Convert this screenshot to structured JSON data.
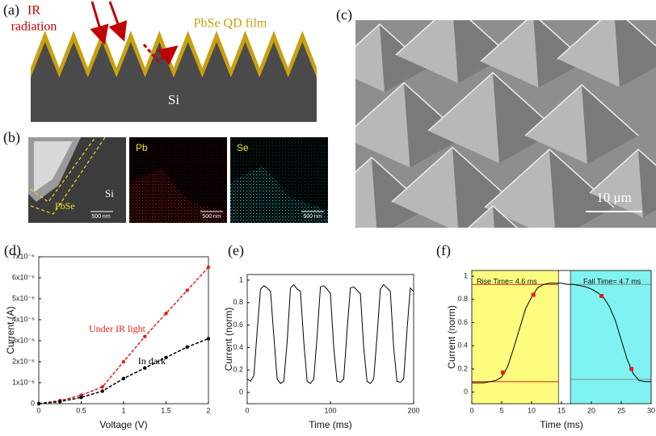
{
  "figure": {
    "a": {
      "label": "(a)",
      "ir": "IR",
      "radiation": "radiation",
      "film": "PbSe QD film",
      "substrate": "Si"
    },
    "b": {
      "label": "(b)",
      "pbse": "PbSe",
      "si": "Si",
      "pb": "Pb",
      "se": "Se",
      "scale": [
        "500 nm",
        "500 nm",
        "500 nm"
      ]
    },
    "c": {
      "label": "(c)",
      "scale": "10 μm"
    },
    "d": {
      "label": "(d)"
    },
    "e": {
      "label": "(e)"
    },
    "f": {
      "label": "(f)"
    }
  },
  "chart_data": [
    {
      "type": "line",
      "x_label": "Voltage (V)",
      "y_label": "Current (A)",
      "x": [
        0,
        0.25,
        0.5,
        0.75,
        1,
        1.25,
        1.5,
        1.75,
        2
      ],
      "series": [
        {
          "name": "Under IR light",
          "color": "#e0201b",
          "values": [
            0,
            1.5e-07,
            4e-07,
            8e-07,
            2e-06,
            3.2e-06,
            4.3e-06,
            5.4e-06,
            6.5e-06
          ]
        },
        {
          "name": "In dark",
          "color": "#000000",
          "values": [
            0,
            1e-07,
            3e-07,
            6e-07,
            1.2e-06,
            1.7e-06,
            2.2e-06,
            2.7e-06,
            3.1e-06
          ]
        }
      ],
      "xlim": [
        0,
        2
      ],
      "xticks": [
        0,
        0.5,
        1,
        1.5,
        2
      ],
      "ylim": [
        0,
        7e-06
      ],
      "yticks": [
        0,
        {
          "value": 1e-06,
          "label": "1x10⁻⁶"
        },
        {
          "value": 2e-06,
          "label": "2x10⁻⁶"
        },
        {
          "value": 3e-06,
          "label": "3x10⁻⁶"
        },
        {
          "value": 4e-06,
          "label": "4x10⁻⁶"
        },
        {
          "value": 5e-06,
          "label": "5x10⁻⁶"
        },
        {
          "value": 6e-06,
          "label": "6x10⁻⁶"
        },
        {
          "value": 7e-06,
          "label": "7x10⁻⁶"
        }
      ],
      "dashed": true,
      "markers": true
    },
    {
      "type": "line",
      "x_label": "Time (ms)",
      "y_label": "Current (norm)",
      "x": [
        0,
        4,
        8,
        12,
        16,
        20,
        24,
        28,
        32,
        36,
        40,
        44,
        48,
        52,
        56,
        60,
        64,
        68,
        72,
        76,
        80,
        84,
        88,
        92,
        96,
        100,
        104,
        108,
        112,
        116,
        120,
        124,
        128,
        132,
        136,
        140,
        144,
        148,
        152,
        156,
        160,
        164,
        168,
        172,
        176,
        180,
        184,
        188,
        192,
        196,
        200
      ],
      "values": [
        0.12,
        0.1,
        0.15,
        0.55,
        0.92,
        0.95,
        0.93,
        0.9,
        0.5,
        0.12,
        0.08,
        0.1,
        0.45,
        0.93,
        0.96,
        0.92,
        0.9,
        0.45,
        0.1,
        0.08,
        0.12,
        0.5,
        0.94,
        0.95,
        0.92,
        0.88,
        0.4,
        0.1,
        0.09,
        0.12,
        0.55,
        0.93,
        0.94,
        0.91,
        0.88,
        0.4,
        0.1,
        0.08,
        0.12,
        0.5,
        0.92,
        0.96,
        0.93,
        0.9,
        0.4,
        0.1,
        0.09,
        0.12,
        0.55,
        0.93,
        0.9
      ],
      "color": "#000000",
      "xlim": [
        0,
        200
      ],
      "xticks": [
        0,
        100,
        200
      ],
      "ylim": [
        -0.1,
        1.05
      ],
      "yticks": [
        0,
        0.2,
        0.4,
        0.6,
        0.8,
        1
      ]
    },
    {
      "type": "line",
      "x_label": "Time (ms)",
      "y_label": "Current (norm)",
      "x": [
        0,
        1,
        2,
        3,
        4,
        5,
        6,
        7,
        8,
        9,
        10,
        11,
        12,
        13,
        14,
        15,
        16,
        17,
        18,
        19,
        20,
        21,
        22,
        23,
        24,
        25,
        26,
        27,
        28,
        29,
        30
      ],
      "values": [
        0.08,
        0.08,
        0.08,
        0.09,
        0.1,
        0.13,
        0.22,
        0.38,
        0.55,
        0.72,
        0.82,
        0.9,
        0.93,
        0.94,
        0.94,
        0.94,
        0.93,
        0.93,
        0.92,
        0.91,
        0.89,
        0.86,
        0.82,
        0.74,
        0.62,
        0.45,
        0.28,
        0.16,
        0.1,
        0.09,
        0.09
      ],
      "color": "#000000",
      "points": {
        "x": [
          5.2,
          10.3,
          21.7,
          26.7
        ],
        "y": [
          0.17,
          0.84,
          0.83,
          0.2
        ],
        "color": "#e0201b"
      },
      "shaded_regions": [
        {
          "x": [
            0,
            14.5
          ],
          "color": "#fdfd7e"
        },
        {
          "x": [
            16.5,
            30
          ],
          "color": "#7ff2f2"
        }
      ],
      "vlines": [
        14.5,
        16.5
      ],
      "hlines": [
        {
          "y": 0.09,
          "x": [
            0,
            14.5
          ],
          "color": "#e0201b"
        },
        {
          "y": 0.93,
          "x": [
            0,
            14.5
          ],
          "color": "#e0201b"
        },
        {
          "y": 0.11,
          "x": [
            16.5,
            30
          ],
          "color": "#888888"
        },
        {
          "y": 0.93,
          "x": [
            16.5,
            30
          ],
          "color": "#888888"
        }
      ],
      "annotations": [
        "Rise Time= 4.6 ms",
        "Fall Time= 4.7 ms"
      ],
      "xlim": [
        0,
        30
      ],
      "xticks": [
        0,
        5,
        10,
        15,
        20,
        25,
        30
      ],
      "ylim": [
        -0.1,
        1.05
      ],
      "yticks": [
        0,
        0.2,
        0.4,
        0.6,
        0.8,
        1
      ]
    }
  ]
}
